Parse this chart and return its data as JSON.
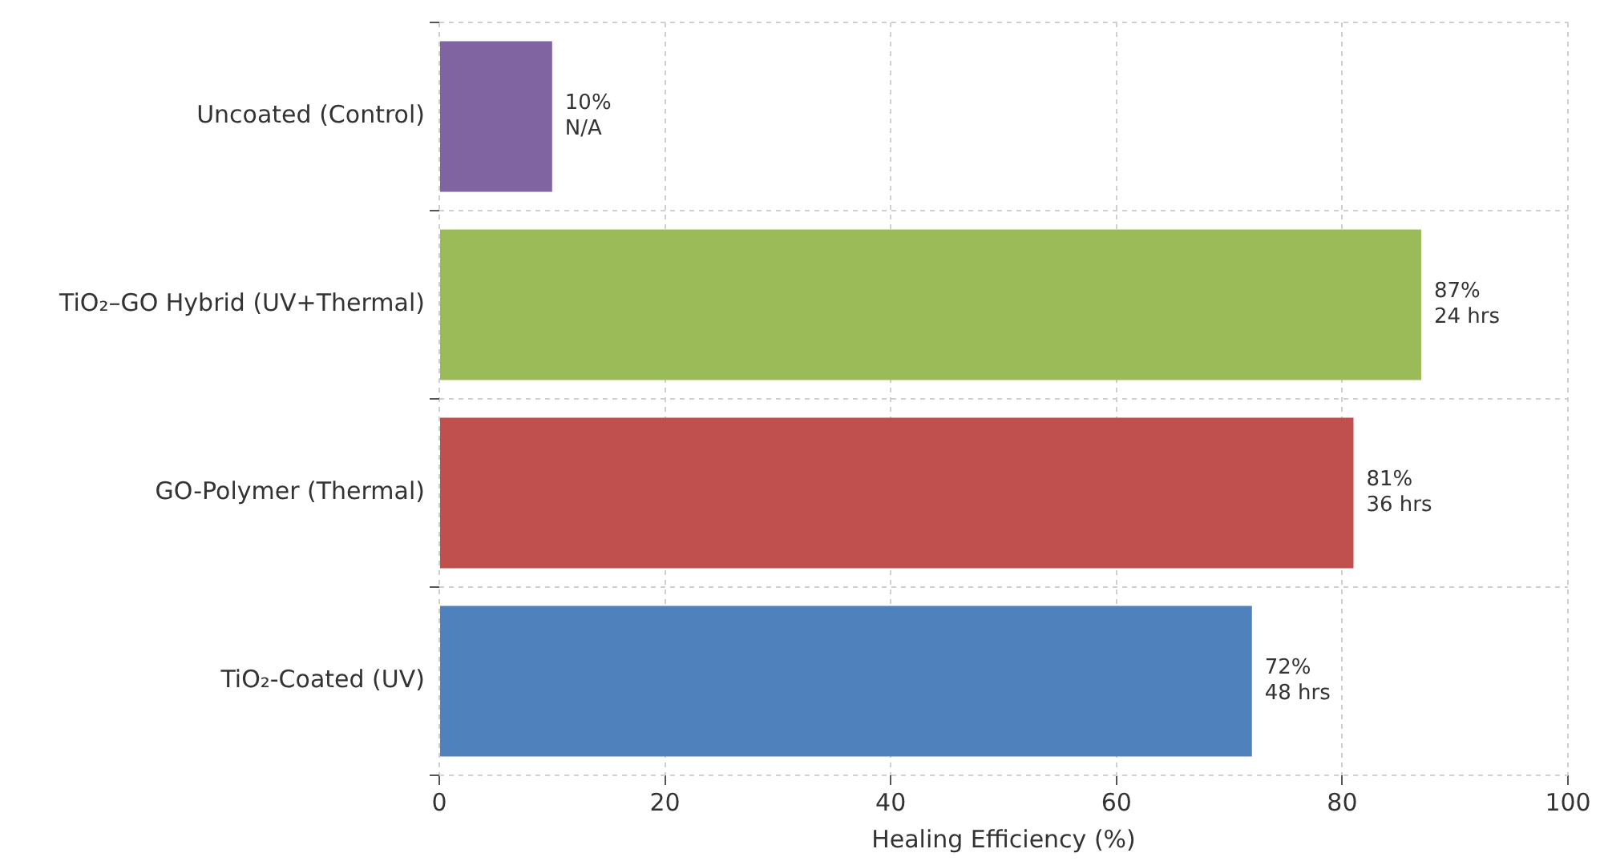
{
  "chart_data": {
    "type": "bar",
    "orientation": "horizontal",
    "xlabel": "Healing Efficiency (%)",
    "categories": [
      "Uncoated (Control)",
      "TiO₂–GO Hybrid (UV+Thermal)",
      "GO-Polymer (Thermal)",
      "TiO₂-Coated (UV)"
    ],
    "values": [
      10,
      87,
      81,
      72
    ],
    "colors": [
      "#8064a2",
      "#9bbb59",
      "#c0504d",
      "#4f81bd"
    ],
    "value_labels": [
      "10%\nN/A",
      "87%\n24 hrs",
      "81%\n36 hrs",
      "72%\n48 hrs"
    ],
    "xlim": [
      0,
      100
    ],
    "xticks": [
      0,
      20,
      40,
      60,
      80,
      100
    ],
    "grid": true
  }
}
